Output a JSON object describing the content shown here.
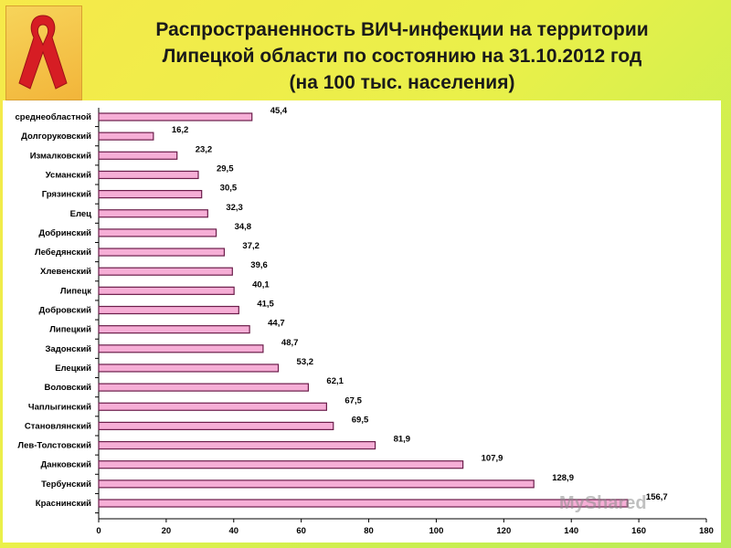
{
  "title": {
    "line1": "Распространенность  ВИЧ-инфекции  на территории",
    "line2": "Липецкой области по состоянию на 31.10.2012 год",
    "line3": "(на 100 тыс. населения)"
  },
  "watermark": "MyShared",
  "colors": {
    "bar_fill": "#f6aed6",
    "bar_stroke": "#6b1d4a"
  },
  "icons": {
    "logo": "red-awareness-ribbon-icon"
  },
  "chart_data": {
    "type": "bar",
    "orientation": "horizontal",
    "title": "",
    "xlabel": "",
    "ylabel": "",
    "xlim": [
      0,
      180
    ],
    "xticks": [
      0,
      20,
      40,
      60,
      80,
      100,
      120,
      140,
      160,
      180
    ],
    "grid": false,
    "categories": [
      "среднеобластной",
      "Долгоруковский",
      "Измалковский",
      "Усманский",
      "Грязинский",
      "Елец",
      "Добринский",
      "Лебедянский",
      "Хлевенский",
      "Липецк",
      "Добровский",
      "Липецкий",
      "Задонский",
      "Елецкий",
      "Воловский",
      "Чаплыгинский",
      "Становлянский",
      "Лев-Толстовский",
      "Данковский",
      "Тербунский",
      "Краснинский"
    ],
    "values": [
      45.4,
      16.2,
      23.2,
      29.5,
      30.5,
      32.3,
      34.8,
      37.2,
      39.6,
      40.1,
      41.5,
      44.7,
      48.7,
      53.2,
      62.1,
      67.5,
      69.5,
      81.9,
      107.9,
      128.9,
      156.7
    ],
    "value_labels": [
      "45,4",
      "16,2",
      "23,2",
      "29,5",
      "30,5",
      "32,3",
      "34,8",
      "37,2",
      "39,6",
      "40,1",
      "41,5",
      "44,7",
      "48,7",
      "53,2",
      "62,1",
      "67,5",
      "69,5",
      "81,9",
      "107,9",
      "128,9",
      "156,7"
    ]
  }
}
